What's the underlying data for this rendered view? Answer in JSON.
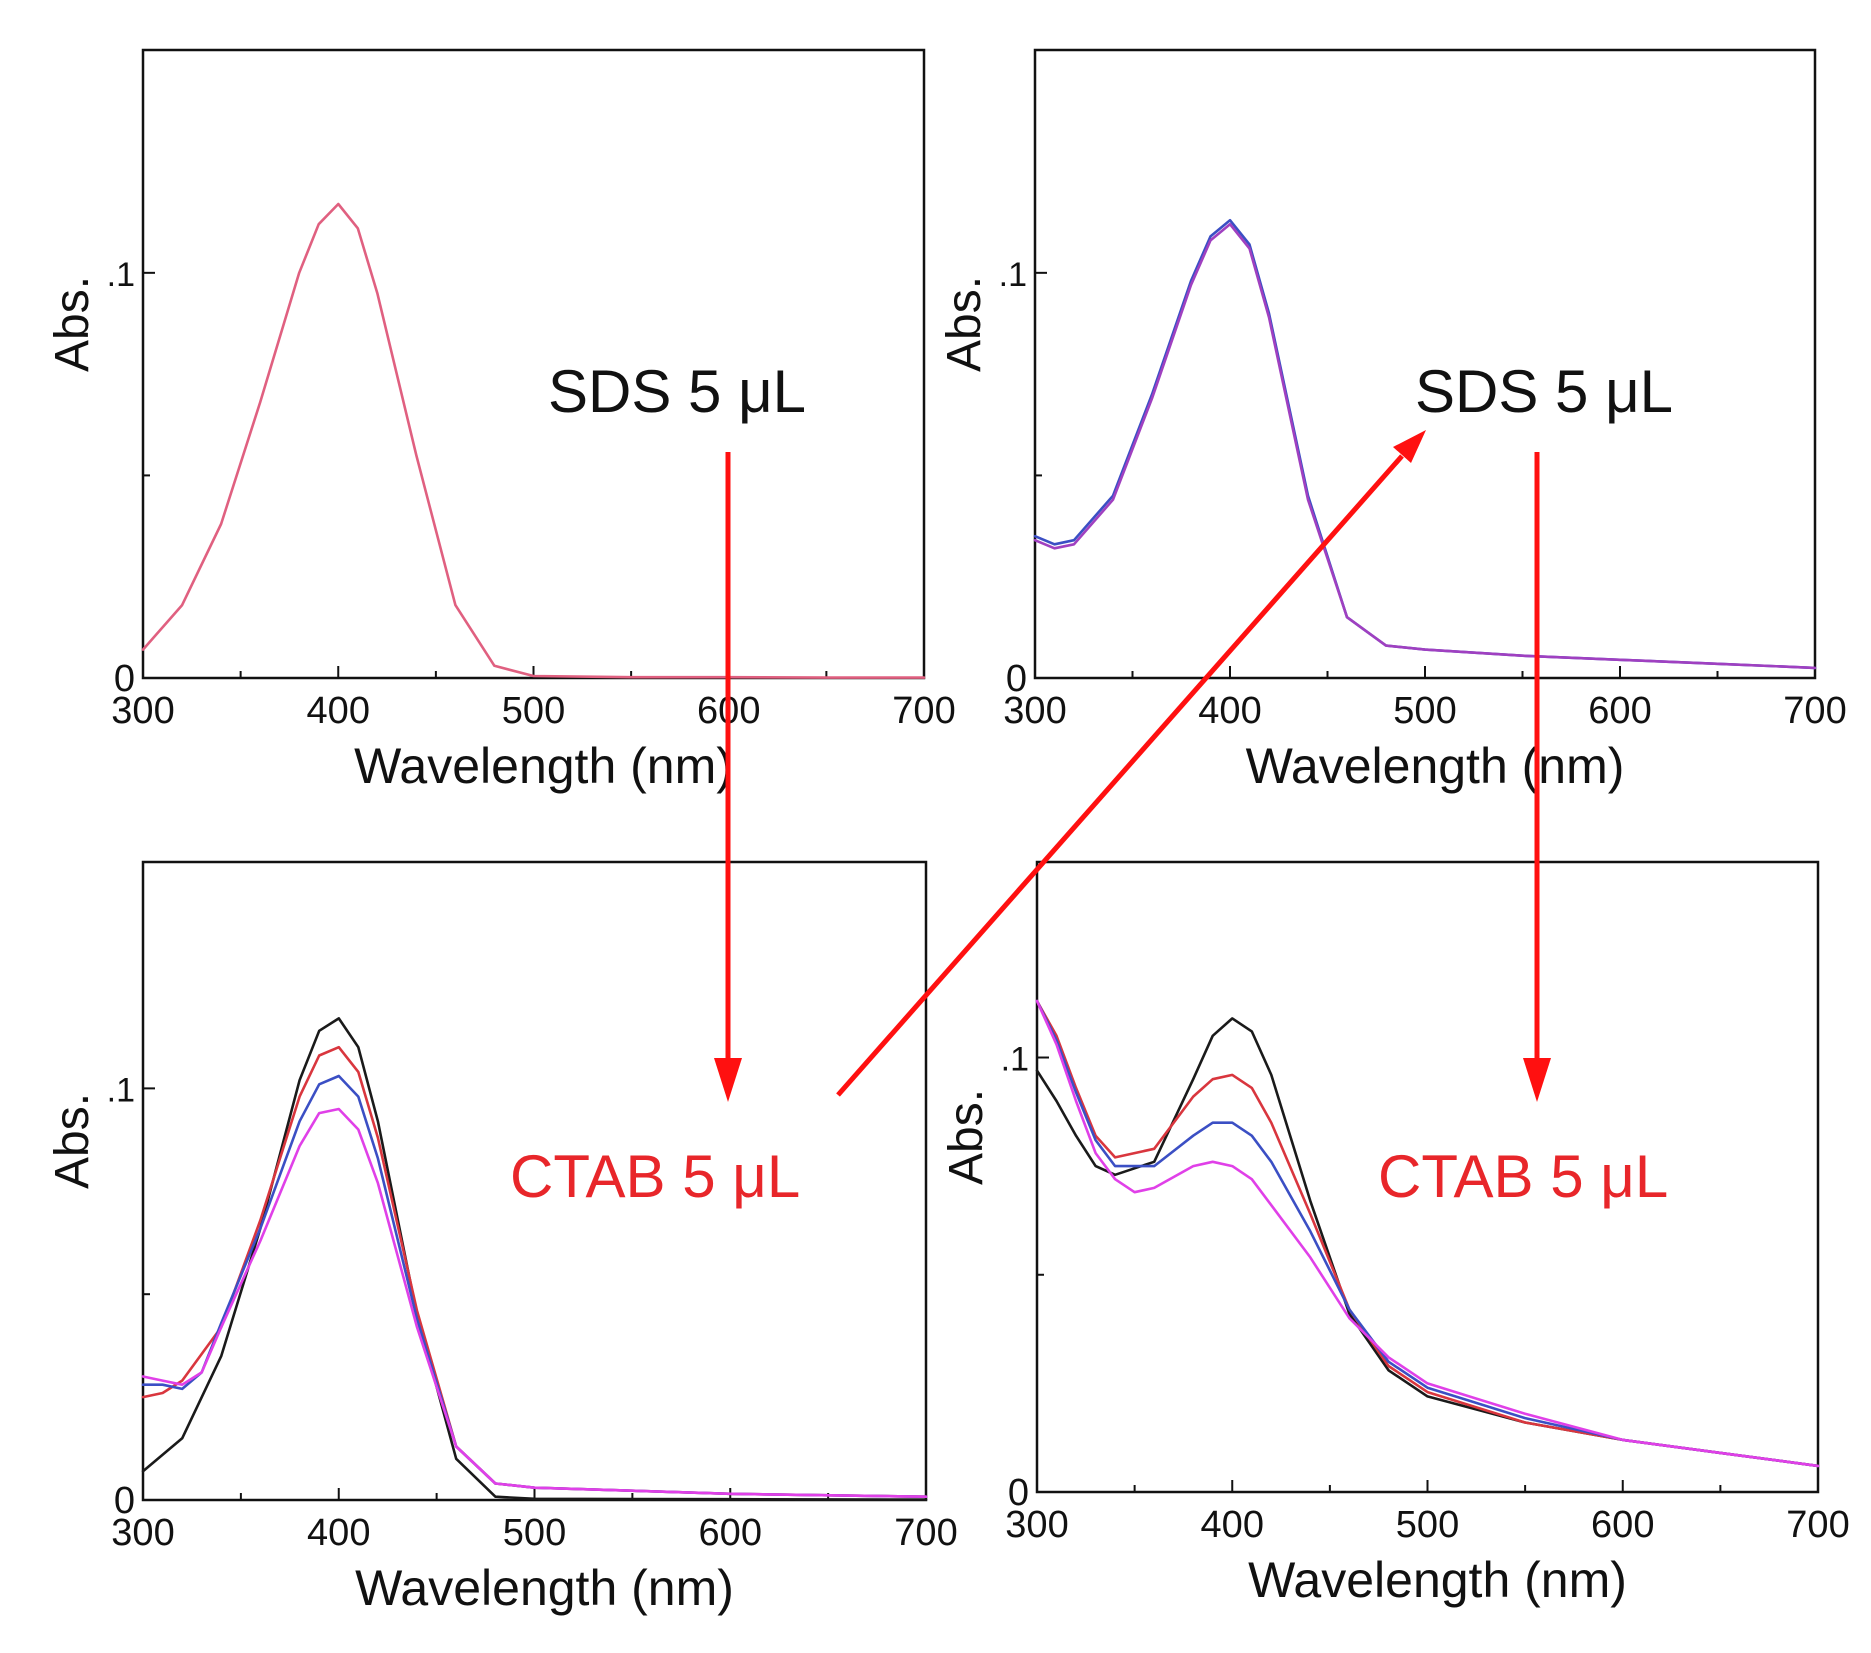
{
  "colors": {
    "black": "#1a1a1a",
    "red": "#d9363e",
    "blue": "#3b4fc4",
    "magenta": "#e040e8",
    "pink": "#e06080",
    "arrow": "#ff1010",
    "ctab_text": "#e8262a"
  },
  "annotations": {
    "sds_left": "SDS 5 μL",
    "sds_right": "SDS 5 μL",
    "ctab_left": "CTAB 5 μL",
    "ctab_right": "CTAB 5 μL"
  },
  "chart_data": [
    {
      "type": "line",
      "panel": "top-left",
      "title": "",
      "xlabel": "Wavelength (nm)",
      "ylabel": "Abs.",
      "xlim": [
        300,
        700
      ],
      "ylim": [
        0,
        0.155
      ],
      "xticks": [
        "300",
        "400",
        "500",
        "600",
        "700"
      ],
      "yticks": [
        {
          "v": 0,
          "label": "0"
        },
        {
          "v": 0.1,
          "label": ".1"
        }
      ],
      "series": [
        {
          "name": "spectrum",
          "color": "#e06080",
          "x": [
            300,
            320,
            340,
            360,
            380,
            390,
            400,
            410,
            420,
            440,
            460,
            480,
            500,
            550,
            600,
            650,
            700
          ],
          "y": [
            0.007,
            0.018,
            0.038,
            0.068,
            0.1,
            0.112,
            0.117,
            0.111,
            0.095,
            0.055,
            0.018,
            0.003,
            0.0005,
            0.0002,
            0.0002,
            0.0001,
            0.0001
          ]
        }
      ]
    },
    {
      "type": "line",
      "panel": "top-right",
      "title": "",
      "xlabel": "Wavelength (nm)",
      "ylabel": "Abs.",
      "xlim": [
        300,
        700
      ],
      "ylim": [
        0,
        0.155
      ],
      "xticks": [
        "300",
        "400",
        "500",
        "600",
        "700"
      ],
      "yticks": [
        {
          "v": 0,
          "label": "0"
        },
        {
          "v": 0.1,
          "label": ".1"
        }
      ],
      "series": [
        {
          "name": "blue",
          "color": "#3b4fc4",
          "x": [
            300,
            310,
            320,
            340,
            360,
            380,
            390,
            400,
            410,
            420,
            440,
            460,
            480,
            500,
            550,
            600,
            650,
            700
          ],
          "y": [
            0.035,
            0.033,
            0.034,
            0.045,
            0.07,
            0.098,
            0.109,
            0.113,
            0.107,
            0.09,
            0.045,
            0.015,
            0.008,
            0.007,
            0.0055,
            0.0045,
            0.0035,
            0.0025
          ]
        },
        {
          "name": "magenta",
          "color": "#a040c0",
          "x": [
            300,
            310,
            320,
            340,
            360,
            380,
            390,
            400,
            410,
            420,
            440,
            460,
            480,
            500,
            550,
            600,
            650,
            700
          ],
          "y": [
            0.034,
            0.032,
            0.033,
            0.044,
            0.069,
            0.097,
            0.108,
            0.112,
            0.106,
            0.089,
            0.044,
            0.015,
            0.008,
            0.007,
            0.0055,
            0.0045,
            0.0035,
            0.0025
          ]
        }
      ]
    },
    {
      "type": "line",
      "panel": "bottom-left",
      "title": "",
      "xlabel": "Wavelength (nm)",
      "ylabel": "Abs.",
      "xlim": [
        300,
        700
      ],
      "ylim": [
        0,
        0.155
      ],
      "xticks": [
        "300",
        "400",
        "500",
        "600",
        "700"
      ],
      "yticks": [
        {
          "v": 0,
          "label": "0"
        },
        {
          "v": 0.1,
          "label": ".1"
        }
      ],
      "series": [
        {
          "name": "black",
          "color": "#1a1a1a",
          "x": [
            300,
            320,
            340,
            360,
            380,
            390,
            400,
            410,
            420,
            440,
            460,
            480,
            500,
            600,
            700
          ],
          "y": [
            0.007,
            0.015,
            0.035,
            0.066,
            0.102,
            0.114,
            0.117,
            0.11,
            0.092,
            0.045,
            0.01,
            0.0008,
            0.0003,
            0.0002,
            0.0001
          ]
        },
        {
          "name": "red",
          "color": "#d9363e",
          "x": [
            300,
            310,
            320,
            340,
            360,
            380,
            390,
            400,
            410,
            420,
            440,
            460,
            480,
            500,
            600,
            700
          ],
          "y": [
            0.025,
            0.026,
            0.029,
            0.042,
            0.068,
            0.098,
            0.108,
            0.11,
            0.104,
            0.088,
            0.046,
            0.013,
            0.004,
            0.003,
            0.0015,
            0.0008
          ]
        },
        {
          "name": "blue",
          "color": "#3b4fc4",
          "x": [
            300,
            310,
            320,
            330,
            340,
            360,
            380,
            390,
            400,
            410,
            420,
            440,
            460,
            480,
            500,
            600,
            700
          ],
          "y": [
            0.028,
            0.028,
            0.027,
            0.031,
            0.043,
            0.066,
            0.092,
            0.101,
            0.103,
            0.098,
            0.083,
            0.044,
            0.013,
            0.004,
            0.003,
            0.0015,
            0.0008
          ]
        },
        {
          "name": "magenta",
          "color": "#e040e8",
          "x": [
            300,
            310,
            320,
            330,
            340,
            360,
            380,
            390,
            400,
            410,
            420,
            440,
            460,
            480,
            500,
            600,
            700
          ],
          "y": [
            0.03,
            0.029,
            0.028,
            0.031,
            0.042,
            0.063,
            0.086,
            0.094,
            0.095,
            0.09,
            0.077,
            0.042,
            0.013,
            0.004,
            0.003,
            0.0015,
            0.0008
          ]
        }
      ]
    },
    {
      "type": "line",
      "panel": "bottom-right",
      "title": "",
      "xlabel": "Wavelength (nm)",
      "ylabel": "Abs.",
      "xlim": [
        300,
        700
      ],
      "ylim": [
        0,
        0.145
      ],
      "xticks": [
        "300",
        "400",
        "500",
        "600",
        "700"
      ],
      "yticks": [
        {
          "v": 0,
          "label": "0"
        },
        {
          "v": 0.1,
          "label": ".1"
        }
      ],
      "series": [
        {
          "name": "black",
          "color": "#1a1a1a",
          "x": [
            300,
            310,
            320,
            330,
            340,
            360,
            380,
            390,
            400,
            410,
            420,
            440,
            460,
            480,
            500,
            550,
            600,
            650,
            700
          ],
          "y": [
            0.097,
            0.09,
            0.082,
            0.075,
            0.073,
            0.076,
            0.095,
            0.105,
            0.109,
            0.106,
            0.096,
            0.067,
            0.041,
            0.028,
            0.022,
            0.016,
            0.012,
            0.009,
            0.006
          ]
        },
        {
          "name": "red",
          "color": "#d9363e",
          "x": [
            300,
            310,
            320,
            330,
            340,
            360,
            380,
            390,
            400,
            410,
            420,
            440,
            460,
            480,
            500,
            550,
            600,
            650,
            700
          ],
          "y": [
            0.113,
            0.105,
            0.093,
            0.082,
            0.077,
            0.079,
            0.091,
            0.095,
            0.096,
            0.093,
            0.085,
            0.064,
            0.042,
            0.029,
            0.023,
            0.016,
            0.012,
            0.009,
            0.006
          ]
        },
        {
          "name": "blue",
          "color": "#3b4fc4",
          "x": [
            300,
            310,
            320,
            330,
            340,
            360,
            380,
            390,
            400,
            410,
            420,
            440,
            460,
            480,
            500,
            550,
            600,
            650,
            700
          ],
          "y": [
            0.113,
            0.104,
            0.092,
            0.081,
            0.075,
            0.075,
            0.082,
            0.085,
            0.085,
            0.082,
            0.076,
            0.06,
            0.042,
            0.03,
            0.024,
            0.017,
            0.012,
            0.009,
            0.006
          ]
        },
        {
          "name": "magenta",
          "color": "#e040e8",
          "x": [
            300,
            310,
            320,
            330,
            340,
            350,
            360,
            380,
            390,
            400,
            410,
            420,
            440,
            460,
            480,
            500,
            550,
            600,
            650,
            700
          ],
          "y": [
            0.113,
            0.103,
            0.09,
            0.078,
            0.072,
            0.069,
            0.07,
            0.075,
            0.076,
            0.075,
            0.072,
            0.066,
            0.054,
            0.04,
            0.031,
            0.025,
            0.018,
            0.012,
            0.009,
            0.006
          ]
        }
      ]
    }
  ]
}
